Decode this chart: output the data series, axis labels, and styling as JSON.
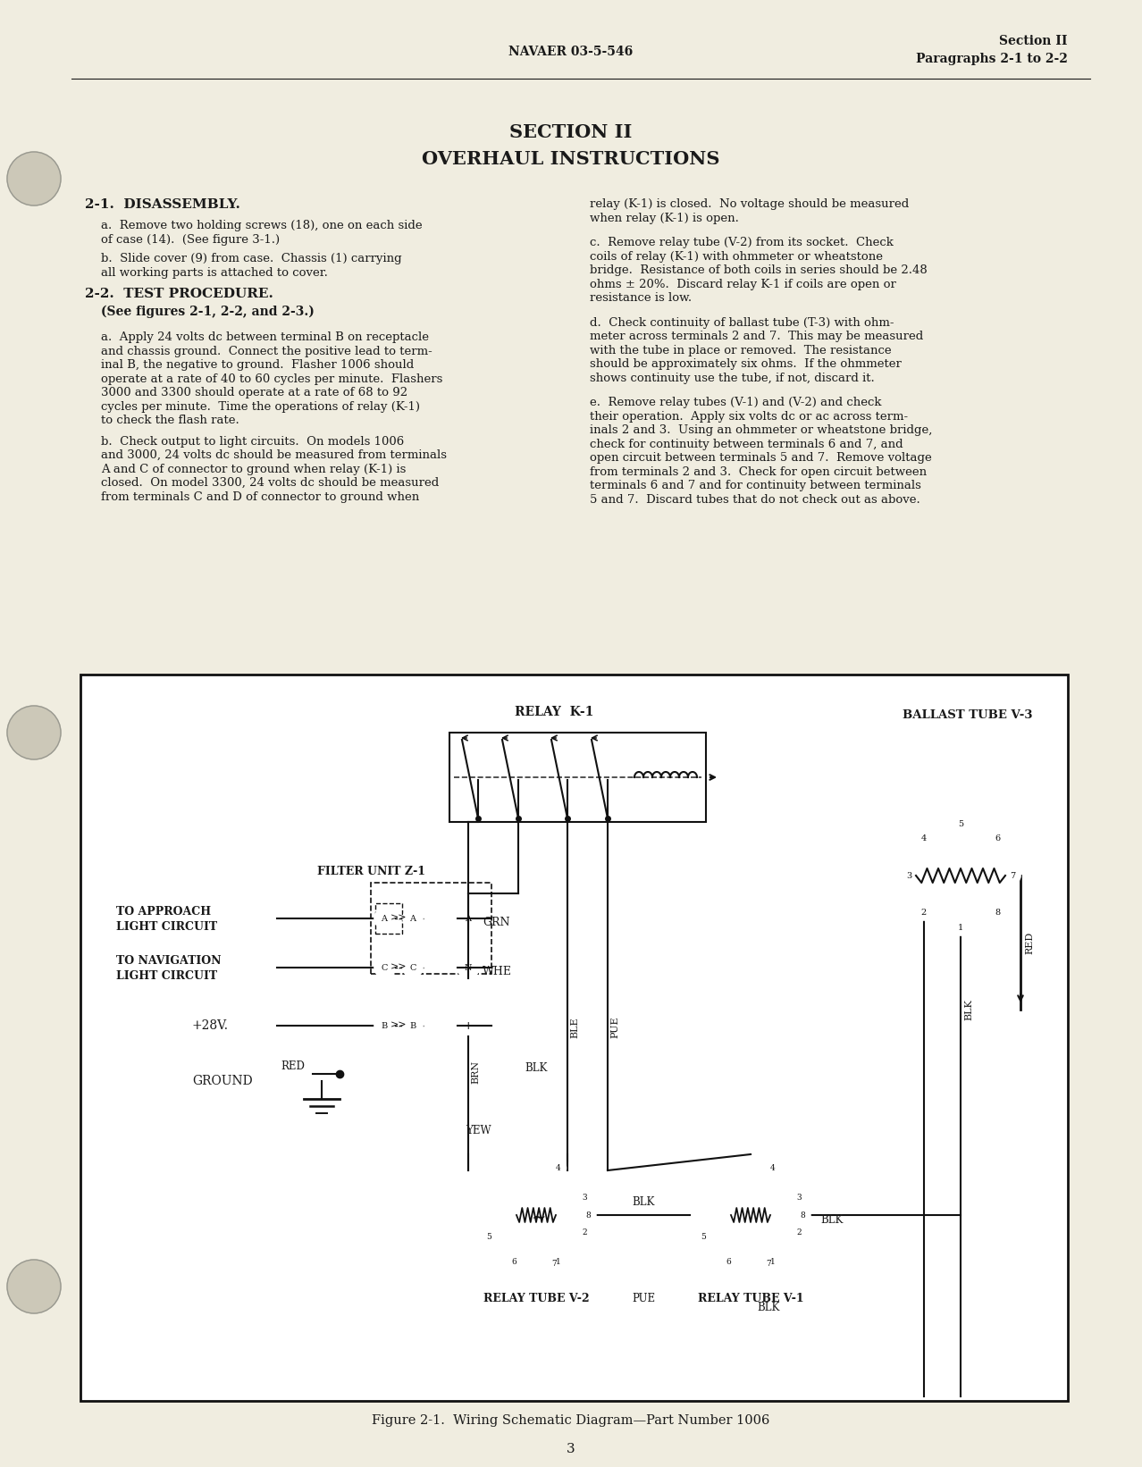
{
  "bg_color": "#f0ede0",
  "text_color": "#1a1a1a",
  "header_left": "NAVAER 03-5-546",
  "header_right_line1": "Section II",
  "header_right_line2": "Paragraphs 2-1 to 2-2",
  "section_title_line1": "SECTION II",
  "section_title_line2": "OVERHAUL INSTRUCTIONS",
  "figure_caption": "Figure 2-1.  Wiring Schematic Diagram—Part Number 1006",
  "page_number": "3"
}
